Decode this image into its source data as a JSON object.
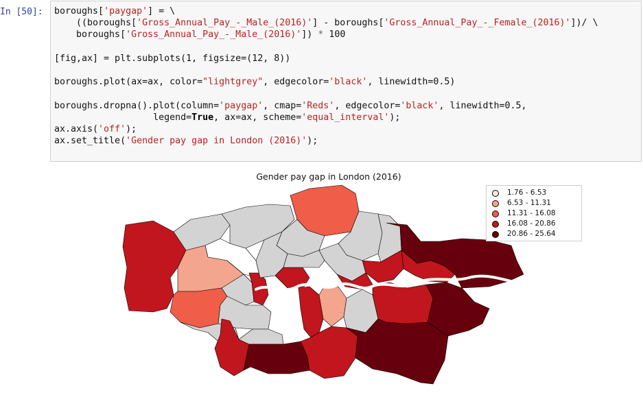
{
  "cell": {
    "prompt": "In [50]:",
    "lines": [
      [
        {
          "t": "boroughs["
        },
        {
          "t": "'paygap'",
          "c": "s"
        },
        {
          "t": "] = \\"
        }
      ],
      [
        {
          "t": "    ((boroughs["
        },
        {
          "t": "'Gross_Annual_Pay_-_Male_(2016)'",
          "c": "s"
        },
        {
          "t": "] - boroughs["
        },
        {
          "t": "'Gross_Annual_Pay_-_Female_(2016)'",
          "c": "s"
        },
        {
          "t": "])/ \\"
        }
      ],
      [
        {
          "t": "    boroughs["
        },
        {
          "t": "'Gross_Annual_Pay_-_Male_(2016)'",
          "c": "s"
        },
        {
          "t": "]) "
        },
        {
          "t": "*",
          "c": "op"
        },
        {
          "t": " 100"
        }
      ],
      [
        {
          "t": ""
        }
      ],
      [
        {
          "t": "[fig,ax] = plt.subplots(1, figsize=(12, 8))"
        }
      ],
      [
        {
          "t": ""
        }
      ],
      [
        {
          "t": "boroughs.plot(ax=ax, color="
        },
        {
          "t": "\"lightgrey\"",
          "c": "s"
        },
        {
          "t": ", edgecolor="
        },
        {
          "t": "'black'",
          "c": "s"
        },
        {
          "t": ", linewidth=0.5)"
        }
      ],
      [
        {
          "t": ""
        }
      ],
      [
        {
          "t": "boroughs.dropna().plot(column="
        },
        {
          "t": "'paygap'",
          "c": "s"
        },
        {
          "t": ", cmap="
        },
        {
          "t": "'Reds'",
          "c": "s"
        },
        {
          "t": ", edgecolor="
        },
        {
          "t": "'black'",
          "c": "s"
        },
        {
          "t": ", linewidth=0.5,"
        }
      ],
      [
        {
          "t": "                  legend="
        },
        {
          "t": "True",
          "c": "kw"
        },
        {
          "t": ", ax=ax, scheme="
        },
        {
          "t": "'equal_interval'",
          "c": "s"
        },
        {
          "t": ");"
        }
      ],
      [
        {
          "t": "ax.axis("
        },
        {
          "t": "'off'",
          "c": "s"
        },
        {
          "t": ");"
        }
      ],
      [
        {
          "t": "ax.set_title("
        },
        {
          "t": "'Gender pay gap in London (2016)'",
          "c": "s"
        },
        {
          "t": ");"
        }
      ]
    ]
  },
  "figure": {
    "title": "Gender pay gap in London (2016)",
    "legend": [
      {
        "label": "1.76 - 6.53",
        "color": "#fee5d9"
      },
      {
        "label": "6.53 - 11.31",
        "color": "#f4a58d"
      },
      {
        "label": "11.31 - 16.08",
        "color": "#f05d49"
      },
      {
        "label": "16.08 - 20.86",
        "color": "#c1161e"
      },
      {
        "label": "20.86 - 25.64",
        "color": "#67000d"
      }
    ],
    "colors": {
      "missing": "#d3d3d3",
      "river": "#ffffff",
      "edge": "#000000"
    }
  }
}
